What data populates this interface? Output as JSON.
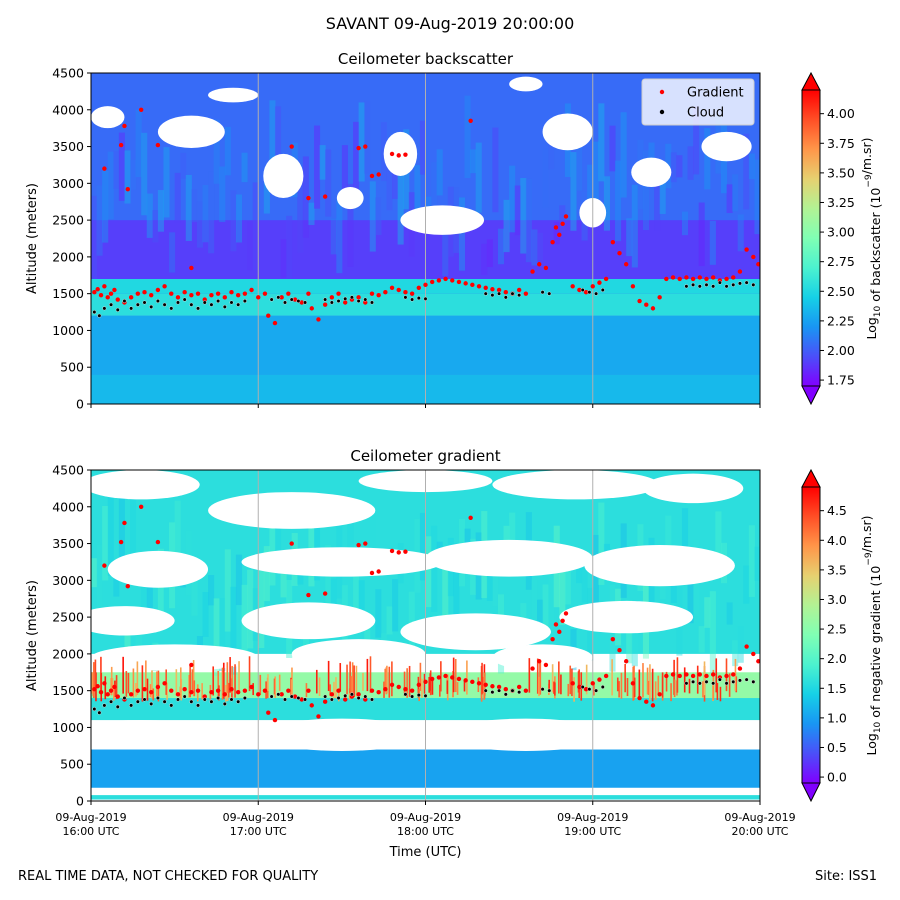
{
  "suptitle": "SAVANT 09-Aug-2019 20:00:00",
  "footer": {
    "left": "REAL TIME DATA, NOT CHECKED FOR QUALITY",
    "right": "Site: ISS1"
  },
  "colors": {
    "gradient_marker": "#ff0000",
    "cloud_marker": "#000000",
    "rainbow": [
      "#8000ff",
      "#4b4ff9",
      "#1996f3",
      "#16d1e6",
      "#4cf2cf",
      "#80ffb4",
      "#b2f294",
      "#e6d170",
      "#ff9649",
      "#ff4f26",
      "#ff0000"
    ]
  },
  "chart_data": [
    {
      "type": "heatmap",
      "id": "backscatter",
      "title": "Ceilometer backscatter",
      "xlabel": "",
      "ylabel": "Altitude (meters)",
      "xlim": [
        16.0,
        20.0
      ],
      "ylim": [
        0,
        4500
      ],
      "yticks": [
        0,
        500,
        1000,
        1500,
        2000,
        2500,
        3000,
        3500,
        4000,
        4500
      ],
      "xticks": [
        16,
        17,
        18,
        19,
        20
      ],
      "xtick_labels_shown": false,
      "grid": "vertical",
      "legend": {
        "position": "top-right",
        "entries": [
          {
            "label": "Gradient",
            "marker": "red dot"
          },
          {
            "label": "Cloud",
            "marker": "black dot"
          }
        ]
      },
      "colorbar": {
        "label_main": "Log",
        "label_sub": "10",
        "label_rest": " of backscatter (10",
        "label_exp": "−9",
        "label_end": "/m.sr)",
        "min": 1.7,
        "max": 4.2,
        "extend": "both",
        "ticks": [
          "1.75",
          "2.00",
          "2.25",
          "2.50",
          "2.75",
          "3.00",
          "3.25",
          "3.50",
          "3.75",
          "4.00"
        ]
      },
      "field": {
        "bands": [
          {
            "from": 0,
            "to": 400,
            "value": 2.35
          },
          {
            "from": 400,
            "to": 1200,
            "value": 2.28
          },
          {
            "from": 1200,
            "to": 1500,
            "value": 2.55
          },
          {
            "from": 1500,
            "to": 1700,
            "value": 2.5
          },
          {
            "from": 1700,
            "to": 2500,
            "value": 1.9
          },
          {
            "from": 2500,
            "to": 4500,
            "value": 2.05
          }
        ]
      }
    },
    {
      "type": "heatmap",
      "id": "gradient",
      "title": "Ceilometer gradient",
      "xlabel": "Time (UTC)",
      "ylabel": "Altitude (meters)",
      "xlim": [
        16.0,
        20.0
      ],
      "ylim": [
        0,
        4500
      ],
      "yticks": [
        0,
        500,
        1000,
        1500,
        2000,
        2500,
        3000,
        3500,
        4000,
        4500
      ],
      "xticks": [
        16,
        17,
        18,
        19,
        20
      ],
      "xtick_labels": [
        {
          "date": "09-Aug-2019",
          "time": "16:00 UTC"
        },
        {
          "date": "09-Aug-2019",
          "time": "17:00 UTC"
        },
        {
          "date": "09-Aug-2019",
          "time": "18:00 UTC"
        },
        {
          "date": "09-Aug-2019",
          "time": "19:00 UTC"
        },
        {
          "date": "09-Aug-2019",
          "time": "20:00 UTC"
        }
      ],
      "grid": "vertical",
      "colorbar": {
        "label_main": "Log",
        "label_sub": "10",
        "label_rest": " of negative gradient (10",
        "label_exp": "−9",
        "label_end": "/m.sr)",
        "min": -0.1,
        "max": 4.9,
        "extend": "both",
        "ticks": [
          "0.0",
          "0.5",
          "1.0",
          "1.5",
          "2.0",
          "2.5",
          "3.0",
          "3.5",
          "4.0",
          "4.5"
        ]
      },
      "field": {
        "bands": [
          {
            "from": 60,
            "to": 100,
            "value": 1.6
          },
          {
            "from": 150,
            "to": 700,
            "value": 1.0
          },
          {
            "from": 1100,
            "to": 1400,
            "value": 1.6
          },
          {
            "from": 1400,
            "to": 1750,
            "value": 2.6
          },
          {
            "from": 2000,
            "to": 4500,
            "value": 1.6
          }
        ]
      }
    }
  ],
  "series": {
    "gradient_points": [
      [
        16.02,
        1520
      ],
      [
        16.04,
        1560
      ],
      [
        16.06,
        1480
      ],
      [
        16.08,
        1600
      ],
      [
        16.1,
        1450
      ],
      [
        16.12,
        1500
      ],
      [
        16.14,
        1550
      ],
      [
        16.16,
        1420
      ],
      [
        16.2,
        1380
      ],
      [
        16.24,
        1450
      ],
      [
        16.28,
        1500
      ],
      [
        16.32,
        1520
      ],
      [
        16.36,
        1480
      ],
      [
        16.4,
        1550
      ],
      [
        16.44,
        1600
      ],
      [
        16.48,
        1500
      ],
      [
        16.52,
        1450
      ],
      [
        16.56,
        1520
      ],
      [
        16.6,
        1480
      ],
      [
        16.64,
        1500
      ],
      [
        16.68,
        1420
      ],
      [
        16.72,
        1480
      ],
      [
        16.76,
        1500
      ],
      [
        16.8,
        1450
      ],
      [
        16.84,
        1520
      ],
      [
        16.88,
        1480
      ],
      [
        16.92,
        1500
      ],
      [
        16.96,
        1550
      ],
      [
        17.0,
        1450
      ],
      [
        17.04,
        1500
      ],
      [
        17.06,
        1200
      ],
      [
        17.1,
        1100
      ],
      [
        17.14,
        1450
      ],
      [
        17.18,
        1500
      ],
      [
        17.22,
        1420
      ],
      [
        17.26,
        1380
      ],
      [
        17.3,
        1500
      ],
      [
        17.32,
        1300
      ],
      [
        17.36,
        1150
      ],
      [
        17.4,
        1350
      ],
      [
        17.44,
        1450
      ],
      [
        17.48,
        1500
      ],
      [
        17.52,
        1380
      ],
      [
        17.56,
        1420
      ],
      [
        17.6,
        1450
      ],
      [
        17.64,
        1380
      ],
      [
        17.68,
        1500
      ],
      [
        17.72,
        1480
      ],
      [
        17.76,
        1520
      ],
      [
        17.8,
        1580
      ],
      [
        17.84,
        1550
      ],
      [
        17.88,
        1520
      ],
      [
        17.92,
        1500
      ],
      [
        17.96,
        1580
      ],
      [
        18.0,
        1620
      ],
      [
        18.04,
        1660
      ],
      [
        18.08,
        1680
      ],
      [
        18.12,
        1700
      ],
      [
        18.16,
        1680
      ],
      [
        18.2,
        1660
      ],
      [
        18.24,
        1640
      ],
      [
        18.28,
        1620
      ],
      [
        18.32,
        1600
      ],
      [
        18.36,
        1580
      ],
      [
        18.4,
        1560
      ],
      [
        18.44,
        1550
      ],
      [
        18.48,
        1520
      ],
      [
        18.52,
        1500
      ],
      [
        18.56,
        1550
      ],
      [
        18.6,
        1500
      ],
      [
        18.64,
        1800
      ],
      [
        18.68,
        1900
      ],
      [
        18.72,
        1850
      ],
      [
        18.76,
        2200
      ],
      [
        18.78,
        2400
      ],
      [
        18.8,
        2300
      ],
      [
        18.82,
        2450
      ],
      [
        18.84,
        2550
      ],
      [
        18.88,
        1600
      ],
      [
        18.92,
        1550
      ],
      [
        18.96,
        1520
      ],
      [
        19.0,
        1600
      ],
      [
        19.04,
        1650
      ],
      [
        19.08,
        1700
      ],
      [
        19.12,
        2200
      ],
      [
        19.16,
        2050
      ],
      [
        19.2,
        1900
      ],
      [
        19.24,
        1600
      ],
      [
        19.28,
        1400
      ],
      [
        19.32,
        1350
      ],
      [
        19.36,
        1300
      ],
      [
        19.4,
        1450
      ],
      [
        19.44,
        1700
      ],
      [
        19.48,
        1720
      ],
      [
        19.52,
        1700
      ],
      [
        19.56,
        1720
      ],
      [
        19.6,
        1700
      ],
      [
        19.64,
        1720
      ],
      [
        19.68,
        1700
      ],
      [
        19.72,
        1720
      ],
      [
        19.76,
        1680
      ],
      [
        19.8,
        1700
      ],
      [
        19.84,
        1720
      ],
      [
        19.88,
        1800
      ],
      [
        19.92,
        2100
      ],
      [
        19.96,
        2000
      ],
      [
        19.99,
        1900
      ],
      [
        16.18,
        3520
      ],
      [
        16.2,
        3780
      ],
      [
        16.22,
        2920
      ],
      [
        16.3,
        4000
      ],
      [
        16.4,
        3520
      ],
      [
        17.6,
        3480
      ],
      [
        17.64,
        3500
      ],
      [
        17.68,
        3100
      ],
      [
        17.72,
        3120
      ],
      [
        17.8,
        3400
      ],
      [
        17.84,
        3380
      ],
      [
        17.88,
        3390
      ],
      [
        17.4,
        2820
      ],
      [
        17.2,
        3500
      ],
      [
        16.6,
        1850
      ],
      [
        18.27,
        3850
      ],
      [
        16.08,
        3200
      ],
      [
        17.3,
        2800
      ]
    ],
    "cloud_points": [
      [
        16.02,
        1250
      ],
      [
        16.05,
        1200
      ],
      [
        16.08,
        1300
      ],
      [
        16.12,
        1350
      ],
      [
        16.16,
        1280
      ],
      [
        16.2,
        1400
      ],
      [
        16.24,
        1300
      ],
      [
        16.28,
        1350
      ],
      [
        16.32,
        1380
      ],
      [
        16.36,
        1320
      ],
      [
        16.4,
        1400
      ],
      [
        16.44,
        1350
      ],
      [
        16.48,
        1300
      ],
      [
        16.52,
        1380
      ],
      [
        16.56,
        1420
      ],
      [
        16.6,
        1350
      ],
      [
        16.64,
        1300
      ],
      [
        16.68,
        1380
      ],
      [
        16.72,
        1350
      ],
      [
        16.76,
        1400
      ],
      [
        16.8,
        1320
      ],
      [
        16.84,
        1380
      ],
      [
        16.88,
        1350
      ],
      [
        16.92,
        1400
      ],
      [
        17.08,
        1420
      ],
      [
        17.12,
        1450
      ],
      [
        17.16,
        1380
      ],
      [
        17.2,
        1420
      ],
      [
        17.24,
        1400
      ],
      [
        17.28,
        1380
      ],
      [
        17.4,
        1420
      ],
      [
        17.44,
        1380
      ],
      [
        17.48,
        1400
      ],
      [
        17.52,
        1430
      ],
      [
        17.56,
        1450
      ],
      [
        17.6,
        1400
      ],
      [
        17.64,
        1420
      ],
      [
        17.68,
        1380
      ],
      [
        17.88,
        1450
      ],
      [
        17.92,
        1420
      ],
      [
        17.96,
        1440
      ],
      [
        18.0,
        1430
      ],
      [
        18.36,
        1500
      ],
      [
        18.4,
        1480
      ],
      [
        18.44,
        1500
      ],
      [
        18.48,
        1450
      ],
      [
        18.52,
        1500
      ],
      [
        18.56,
        1480
      ],
      [
        18.7,
        1520
      ],
      [
        18.74,
        1500
      ],
      [
        18.94,
        1550
      ],
      [
        18.98,
        1520
      ],
      [
        19.02,
        1500
      ],
      [
        19.06,
        1550
      ],
      [
        19.56,
        1600
      ],
      [
        19.6,
        1620
      ],
      [
        19.64,
        1600
      ],
      [
        19.68,
        1620
      ],
      [
        19.72,
        1600
      ],
      [
        19.76,
        1650
      ],
      [
        19.8,
        1600
      ],
      [
        19.84,
        1620
      ],
      [
        19.88,
        1640
      ],
      [
        19.92,
        1650
      ],
      [
        19.96,
        1620
      ]
    ],
    "white_blobs": [
      [
        16.6,
        3700,
        0.2,
        220
      ],
      [
        17.15,
        3100,
        0.12,
        300
      ],
      [
        17.85,
        3400,
        0.1,
        300
      ],
      [
        18.85,
        3700,
        0.15,
        250
      ],
      [
        18.1,
        2500,
        0.25,
        200
      ],
      [
        16.1,
        3900,
        0.1,
        150
      ],
      [
        19.35,
        3150,
        0.12,
        200
      ],
      [
        19.8,
        3500,
        0.15,
        200
      ],
      [
        16.85,
        4200,
        0.15,
        100
      ],
      [
        18.6,
        4350,
        0.1,
        100
      ],
      [
        19.0,
        2600,
        0.08,
        200
      ],
      [
        17.55,
        2800,
        0.08,
        150
      ]
    ],
    "gradient_white_blobs": [
      [
        16.3,
        4300,
        0.35,
        200
      ],
      [
        17.2,
        3950,
        0.5,
        250
      ],
      [
        18.0,
        4350,
        0.4,
        150
      ],
      [
        18.9,
        4300,
        0.5,
        200
      ],
      [
        19.6,
        4250,
        0.3,
        200
      ],
      [
        16.4,
        3150,
        0.3,
        250
      ],
      [
        17.5,
        3250,
        0.6,
        200
      ],
      [
        18.5,
        3300,
        0.5,
        250
      ],
      [
        19.4,
        3200,
        0.45,
        280
      ],
      [
        16.2,
        2450,
        0.3,
        200
      ],
      [
        17.3,
        2450,
        0.4,
        250
      ],
      [
        18.3,
        2300,
        0.45,
        250
      ],
      [
        19.2,
        2500,
        0.4,
        220
      ],
      [
        16.5,
        1950,
        0.5,
        180
      ],
      [
        17.6,
        2000,
        0.4,
        200
      ],
      [
        18.7,
        1950,
        0.3,
        180
      ],
      [
        16.3,
        900,
        0.5,
        200
      ],
      [
        17.5,
        900,
        0.5,
        220
      ],
      [
        18.6,
        900,
        0.5,
        220
      ],
      [
        19.5,
        900,
        0.5,
        200
      ]
    ]
  }
}
